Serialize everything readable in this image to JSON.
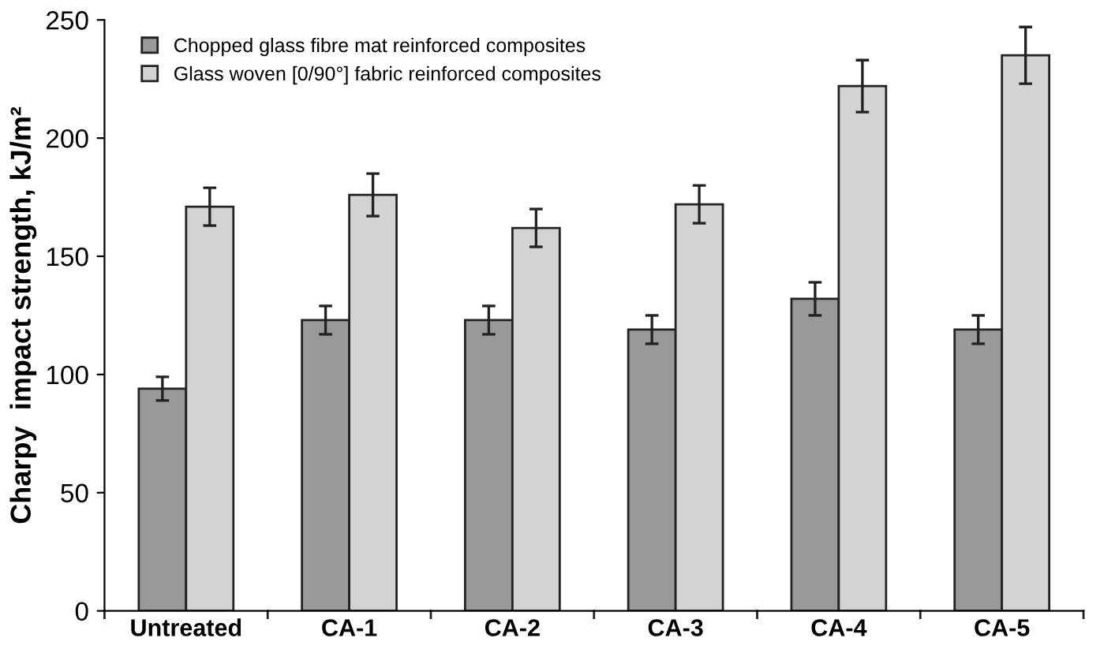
{
  "chart_data": {
    "type": "bar",
    "ylabel": "Charpy  impact strength, kJ/m²",
    "categories": [
      "Untreated",
      "CA-1",
      "CA-2",
      "CA-3",
      "CA-4",
      "CA-5"
    ],
    "series": [
      {
        "name": "Chopped glass fibre mat reinforced composites",
        "color": "#999999",
        "values": [
          94,
          123,
          123,
          119,
          132,
          119
        ],
        "errors": [
          5,
          6,
          6,
          6,
          7,
          6
        ]
      },
      {
        "name": "Glass woven [0/90°] fabric reinforced composites",
        "color": "#d3d3d3",
        "values": [
          171,
          176,
          162,
          172,
          222,
          235
        ],
        "errors": [
          8,
          9,
          8,
          8,
          11,
          12
        ]
      }
    ],
    "ylim": [
      0,
      250
    ],
    "yticks": [
      0,
      50,
      100,
      150,
      200,
      250
    ],
    "grid": false,
    "legend": "top left"
  }
}
